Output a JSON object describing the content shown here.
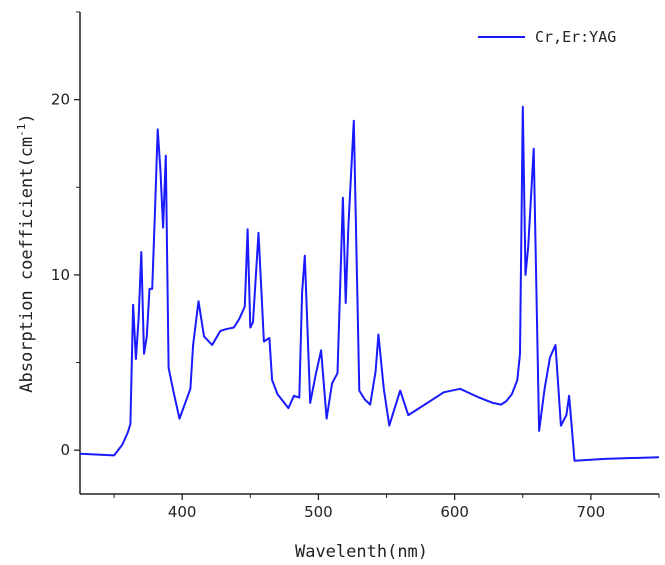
{
  "chart_data": {
    "type": "line",
    "title": "",
    "xlabel": "Wavelenth(nm)",
    "ylabel": "Absorption coefficient(cm",
    "ylabel_sup": "-1",
    "ylabel_close": ")",
    "xlim": [
      325,
      750
    ],
    "ylim": [
      -2.5,
      25
    ],
    "xticks": [
      400,
      500,
      600,
      700
    ],
    "yticks": [
      0,
      10,
      20
    ],
    "grid": false,
    "legend_position": "top-right",
    "color": "#1a1aff",
    "series": [
      {
        "name": "Cr,Er:YAG",
        "x": [
          325,
          350,
          356,
          360,
          362,
          364,
          366,
          368,
          370,
          372,
          374,
          376,
          378,
          380,
          382,
          384,
          386,
          388,
          390,
          394,
          398,
          406,
          408,
          412,
          416,
          422,
          428,
          432,
          438,
          442,
          446,
          448,
          450,
          452,
          456,
          460,
          464,
          466,
          470,
          478,
          482,
          486,
          488,
          490,
          494,
          498,
          502,
          506,
          510,
          514,
          518,
          520,
          522,
          526,
          530,
          534,
          538,
          542,
          544,
          548,
          552,
          556,
          560,
          566,
          572,
          580,
          592,
          604,
          618,
          628,
          634,
          638,
          642,
          646,
          648,
          650,
          652,
          654,
          658,
          662,
          666,
          670,
          674,
          678,
          682,
          684,
          686,
          688,
          710,
          750
        ],
        "y": [
          -0.2,
          -0.3,
          0.3,
          1.0,
          1.5,
          8.3,
          5.2,
          7.5,
          11.3,
          5.5,
          6.5,
          9.2,
          9.2,
          13.5,
          18.3,
          16.0,
          12.7,
          16.8,
          4.7,
          3.2,
          1.8,
          3.5,
          6.0,
          8.5,
          6.5,
          6.0,
          6.8,
          6.9,
          7.0,
          7.5,
          8.2,
          12.6,
          7.0,
          7.3,
          12.4,
          6.2,
          6.4,
          4.0,
          3.2,
          2.4,
          3.1,
          3.0,
          9.0,
          11.1,
          2.7,
          4.3,
          5.7,
          1.8,
          3.8,
          4.4,
          14.4,
          8.4,
          12.8,
          18.8,
          3.4,
          2.9,
          2.6,
          4.5,
          6.6,
          3.5,
          1.4,
          2.4,
          3.4,
          2.0,
          2.3,
          2.7,
          3.3,
          3.5,
          3.0,
          2.7,
          2.6,
          2.8,
          3.2,
          4.0,
          5.5,
          19.6,
          10.0,
          11.6,
          17.2,
          1.1,
          3.5,
          5.3,
          6.0,
          1.4,
          2.0,
          3.1,
          1.3,
          -0.6,
          -0.5,
          -0.4
        ]
      }
    ]
  }
}
